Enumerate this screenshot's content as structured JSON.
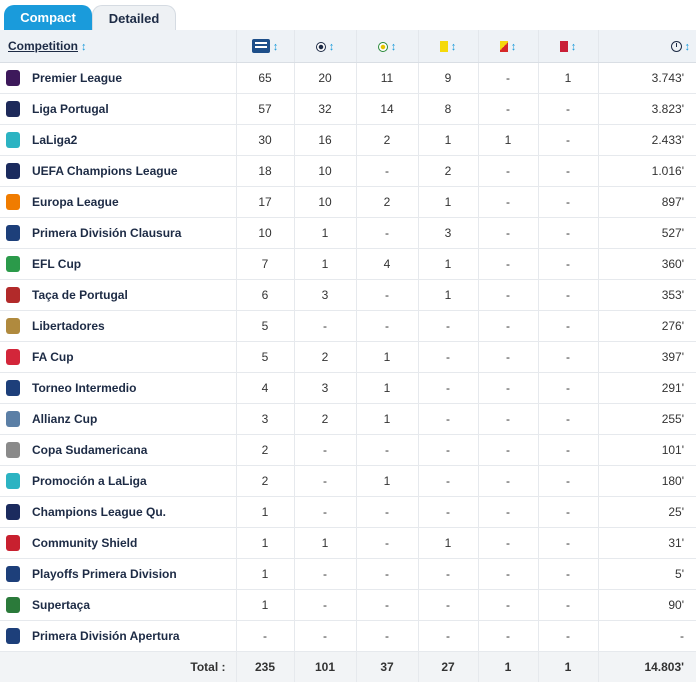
{
  "tabs": {
    "compact": "Compact",
    "detailed": "Detailed"
  },
  "header": {
    "competition": "Competition",
    "sort_glyph": "↕",
    "icons": [
      "appearances-icon",
      "goals-icon",
      "assists-icon",
      "yellow-card-icon",
      "second-yellow-icon",
      "red-card-icon",
      "minutes-clock-icon"
    ]
  },
  "colors": {
    "accent": "#1a9bdb",
    "header_bg": "#eef2f6",
    "text": "#1d2b45",
    "yellow": "#f5d90a",
    "red": "#c91f37"
  },
  "rows": [
    {
      "name": "Premier League",
      "logo": "premier-league-logo",
      "color": "#3d195b",
      "apps": "65",
      "goals": "20",
      "assists": "11",
      "yellow": "9",
      "second_yellow": "-",
      "red": "1",
      "minutes": "3.743'"
    },
    {
      "name": "Liga Portugal",
      "logo": "liga-portugal-logo",
      "color": "#1e2a5a",
      "apps": "57",
      "goals": "32",
      "assists": "14",
      "yellow": "8",
      "second_yellow": "-",
      "red": "-",
      "minutes": "3.823'"
    },
    {
      "name": "LaLiga2",
      "logo": "laliga2-logo",
      "color": "#2cb3c2",
      "apps": "30",
      "goals": "16",
      "assists": "2",
      "yellow": "1",
      "second_yellow": "1",
      "red": "-",
      "minutes": "2.433'"
    },
    {
      "name": "UEFA Champions League",
      "logo": "champions-league-logo",
      "color": "#1b2b5e",
      "apps": "18",
      "goals": "10",
      "assists": "-",
      "yellow": "2",
      "second_yellow": "-",
      "red": "-",
      "minutes": "1.016'"
    },
    {
      "name": "Europa League",
      "logo": "europa-league-logo",
      "color": "#f07c00",
      "apps": "17",
      "goals": "10",
      "assists": "2",
      "yellow": "1",
      "second_yellow": "-",
      "red": "-",
      "minutes": "897'"
    },
    {
      "name": "Primera División Clausura",
      "logo": "primera-division-logo",
      "color": "#1d3f7a",
      "apps": "10",
      "goals": "1",
      "assists": "-",
      "yellow": "3",
      "second_yellow": "-",
      "red": "-",
      "minutes": "527'"
    },
    {
      "name": "EFL Cup",
      "logo": "efl-cup-logo",
      "color": "#2b9a4a",
      "apps": "7",
      "goals": "1",
      "assists": "4",
      "yellow": "1",
      "second_yellow": "-",
      "red": "-",
      "minutes": "360'"
    },
    {
      "name": "Taça de Portugal",
      "logo": "taca-de-portugal-logo",
      "color": "#b22a2a",
      "apps": "6",
      "goals": "3",
      "assists": "-",
      "yellow": "1",
      "second_yellow": "-",
      "red": "-",
      "minutes": "353'"
    },
    {
      "name": "Libertadores",
      "logo": "libertadores-logo",
      "color": "#b08a3e",
      "apps": "5",
      "goals": "-",
      "assists": "-",
      "yellow": "-",
      "second_yellow": "-",
      "red": "-",
      "minutes": "276'"
    },
    {
      "name": "FA Cup",
      "logo": "fa-cup-logo",
      "color": "#d3263a",
      "apps": "5",
      "goals": "2",
      "assists": "1",
      "yellow": "-",
      "second_yellow": "-",
      "red": "-",
      "minutes": "397'"
    },
    {
      "name": "Torneo Intermedio",
      "logo": "torneo-intermedio-logo",
      "color": "#1d3f7a",
      "apps": "4",
      "goals": "3",
      "assists": "1",
      "yellow": "-",
      "second_yellow": "-",
      "red": "-",
      "minutes": "291'"
    },
    {
      "name": "Allianz Cup",
      "logo": "allianz-cup-logo",
      "color": "#5b7fa6",
      "apps": "3",
      "goals": "2",
      "assists": "1",
      "yellow": "-",
      "second_yellow": "-",
      "red": "-",
      "minutes": "255'"
    },
    {
      "name": "Copa Sudamericana",
      "logo": "copa-sudamericana-logo",
      "color": "#8a8a8a",
      "apps": "2",
      "goals": "-",
      "assists": "-",
      "yellow": "-",
      "second_yellow": "-",
      "red": "-",
      "minutes": "101'"
    },
    {
      "name": "Promoción a LaLiga",
      "logo": "promocion-laliga-logo",
      "color": "#2cb3c2",
      "apps": "2",
      "goals": "-",
      "assists": "1",
      "yellow": "-",
      "second_yellow": "-",
      "red": "-",
      "minutes": "180'"
    },
    {
      "name": "Champions League Qu.",
      "logo": "champions-league-qualifying-logo",
      "color": "#1b2b5e",
      "apps": "1",
      "goals": "-",
      "assists": "-",
      "yellow": "-",
      "second_yellow": "-",
      "red": "-",
      "minutes": "25'"
    },
    {
      "name": "Community Shield",
      "logo": "community-shield-logo",
      "color": "#c8202f",
      "apps": "1",
      "goals": "1",
      "assists": "-",
      "yellow": "1",
      "second_yellow": "-",
      "red": "-",
      "minutes": "31'"
    },
    {
      "name": "Playoffs Primera Division",
      "logo": "playoffs-primera-division-logo",
      "color": "#1d3f7a",
      "apps": "1",
      "goals": "-",
      "assists": "-",
      "yellow": "-",
      "second_yellow": "-",
      "red": "-",
      "minutes": "5'"
    },
    {
      "name": "Supertaça",
      "logo": "supertaca-logo",
      "color": "#2b7a3a",
      "apps": "1",
      "goals": "-",
      "assists": "-",
      "yellow": "-",
      "second_yellow": "-",
      "red": "-",
      "minutes": "90'"
    },
    {
      "name": "Primera División Apertura",
      "logo": "primera-division-apertura-logo",
      "color": "#1d3f7a",
      "apps": "-",
      "goals": "-",
      "assists": "-",
      "yellow": "-",
      "second_yellow": "-",
      "red": "-",
      "minutes": "-"
    }
  ],
  "total": {
    "label": "Total :",
    "apps": "235",
    "goals": "101",
    "assists": "37",
    "yellow": "27",
    "second_yellow": "1",
    "red": "1",
    "minutes": "14.803'"
  }
}
